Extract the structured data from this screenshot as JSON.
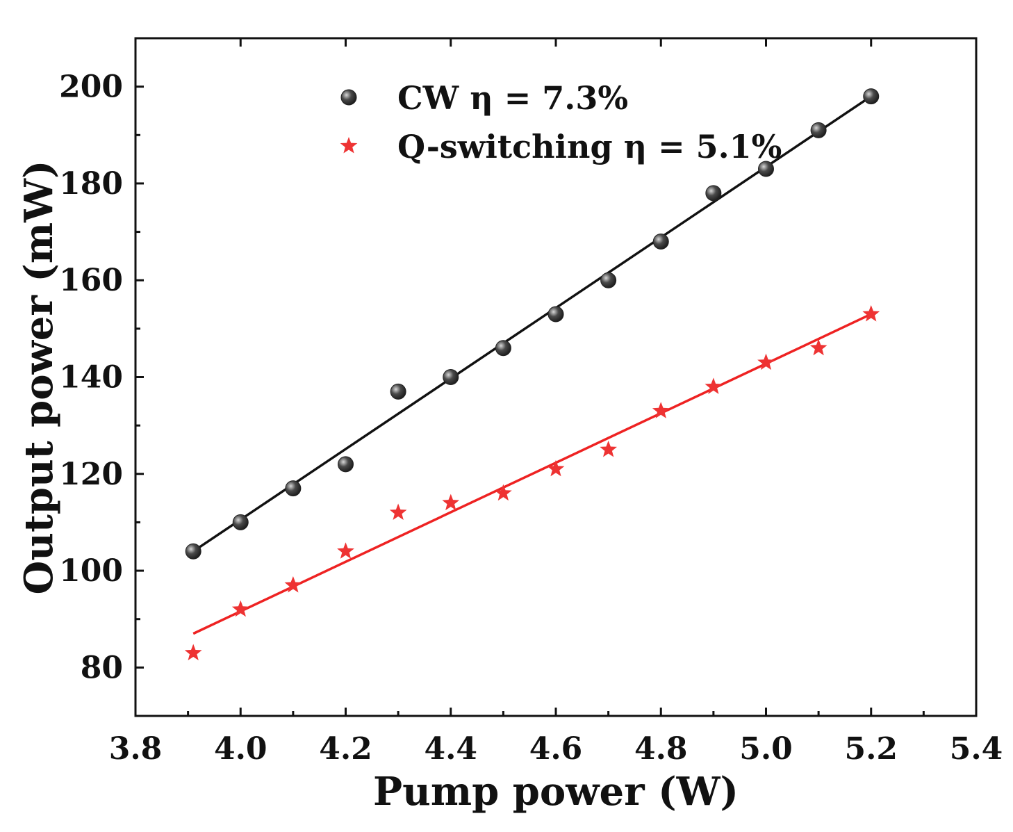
{
  "chart_data": {
    "type": "scatter",
    "xlabel": "Pump power (W)",
    "ylabel": "Output power (mW)",
    "xlim": [
      3.8,
      5.4
    ],
    "ylim": [
      70,
      210
    ],
    "xticks": [
      "3.8",
      "4.0",
      "4.2",
      "4.4",
      "4.6",
      "4.8",
      "5.0",
      "5.2",
      "5.4"
    ],
    "yticks": [
      "80",
      "100",
      "120",
      "140",
      "160",
      "180",
      "200"
    ],
    "x": [
      3.91,
      4.0,
      4.1,
      4.2,
      4.3,
      4.4,
      4.5,
      4.6,
      4.7,
      4.8,
      4.9,
      5.0,
      5.1,
      5.2
    ],
    "legend_position": "top-center",
    "series": [
      {
        "name": "CW η = 7.3%",
        "marker": "sphere",
        "color": "#4a4a4a",
        "line_color": "#111111",
        "values": [
          104,
          110,
          117,
          122,
          137,
          140,
          146,
          153,
          160,
          168,
          178,
          183,
          191,
          198
        ],
        "fit": {
          "x": [
            3.91,
            5.2
          ],
          "y": [
            104,
            198
          ]
        }
      },
      {
        "name": "Q-switching η = 5.1%",
        "marker": "star",
        "color": "#ee3333",
        "line_color": "#ee2222",
        "values": [
          83,
          92,
          97,
          104,
          112,
          114,
          116,
          121,
          125,
          133,
          138,
          143,
          146,
          153
        ],
        "fit": {
          "x": [
            3.91,
            5.2
          ],
          "y": [
            87,
            153
          ]
        }
      }
    ]
  }
}
